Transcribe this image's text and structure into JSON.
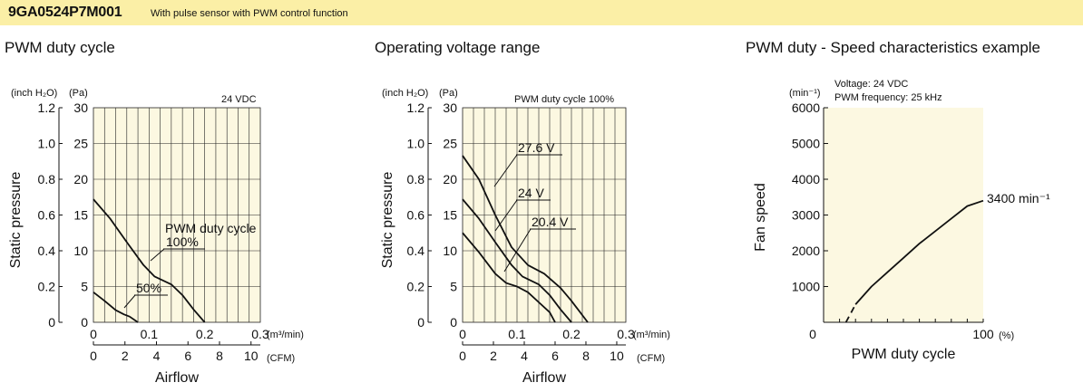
{
  "header": {
    "model": "9GA0524P7M001",
    "subtitle": "With pulse sensor with PWM control function",
    "colors": {
      "band": "#FBEFA6",
      "plot_bg": "#FCF8E1"
    }
  },
  "chart_data": [
    {
      "type": "line",
      "title": "PWM duty cycle",
      "note": "24 VDC",
      "xlabel": "Airflow",
      "ylabel": "Static pressure",
      "x_unit_primary": "(m³/min)",
      "x_unit_secondary": "(CFM)",
      "y_unit_left": "(inch H₂O)",
      "y_unit_right": "(Pa)",
      "xlim": [
        0,
        0.3
      ],
      "ylim": [
        0,
        30
      ],
      "x_ticks": [
        "0",
        "0.1",
        "0.2",
        "0.3"
      ],
      "x_ticks_secondary": [
        "0",
        "2",
        "4",
        "6",
        "8",
        "10"
      ],
      "y_ticks": [
        "0",
        "5",
        "10",
        "15",
        "20",
        "25",
        "30"
      ],
      "y_ticks_left": [
        "0",
        "0.2",
        "0.4",
        "0.6",
        "0.8",
        "1.0",
        "1.2"
      ],
      "grid": true,
      "series": [
        {
          "name": "100%",
          "x": [
            0,
            0.03,
            0.06,
            0.09,
            0.11,
            0.14,
            0.16,
            0.18,
            0.2
          ],
          "y": [
            17.2,
            14.5,
            11.2,
            8,
            6.4,
            5.3,
            3.8,
            1.8,
            0
          ]
        },
        {
          "name": "50%",
          "x": [
            0,
            0.02,
            0.04,
            0.055,
            0.065,
            0.08
          ],
          "y": [
            4.2,
            3,
            1.7,
            1.1,
            0.8,
            0
          ]
        }
      ],
      "annotations": [
        "PWM duty cycle",
        "100%",
        "50%"
      ]
    },
    {
      "type": "line",
      "title": "Operating voltage range",
      "note": "PWM duty cycle 100%",
      "xlabel": "Airflow",
      "ylabel": "Static pressure",
      "x_unit_primary": "(m³/min)",
      "x_unit_secondary": "(CFM)",
      "y_unit_left": "(inch H₂O)",
      "y_unit_right": "(Pa)",
      "xlim": [
        0,
        0.3
      ],
      "ylim": [
        0,
        30
      ],
      "x_ticks": [
        "0",
        "0.1",
        "0.2",
        "0.3"
      ],
      "x_ticks_secondary": [
        "0",
        "2",
        "4",
        "6",
        "8",
        "10"
      ],
      "y_ticks": [
        "0",
        "5",
        "10",
        "15",
        "20",
        "25",
        "30"
      ],
      "y_ticks_left": [
        "0",
        "0.2",
        "0.4",
        "0.6",
        "0.8",
        "1.0",
        "1.2"
      ],
      "grid": true,
      "series": [
        {
          "name": "27.6 V",
          "x": [
            0,
            0.03,
            0.06,
            0.09,
            0.12,
            0.15,
            0.18,
            0.2,
            0.23
          ],
          "y": [
            23.3,
            20,
            15,
            10.5,
            8,
            6.8,
            4.8,
            3,
            0
          ]
        },
        {
          "name": "24 V",
          "x": [
            0,
            0.03,
            0.06,
            0.09,
            0.11,
            0.14,
            0.16,
            0.18,
            0.2
          ],
          "y": [
            17.2,
            14.5,
            11.2,
            8,
            6.4,
            5.3,
            3.8,
            1.8,
            0
          ]
        },
        {
          "name": "20.4 V",
          "x": [
            0,
            0.03,
            0.06,
            0.08,
            0.1,
            0.12,
            0.14,
            0.16,
            0.17
          ],
          "y": [
            12.5,
            9.8,
            6.8,
            5.5,
            5,
            4.2,
            2.8,
            1.4,
            0
          ]
        }
      ],
      "annotations": [
        "27.6 V",
        "24 V",
        "20.4 V"
      ]
    },
    {
      "type": "line",
      "title": "PWM duty - Speed characteristics example",
      "notes": [
        "Voltage: 24 VDC",
        "PWM frequency: 25 kHz"
      ],
      "xlabel": "PWM duty cycle",
      "ylabel": "Fan speed",
      "x_unit": "(%)",
      "y_unit": "(min⁻¹)",
      "xlim": [
        0,
        100
      ],
      "ylim": [
        0,
        6000
      ],
      "x_ticks": [
        "0",
        "100"
      ],
      "y_ticks": [
        "1000",
        "2000",
        "3000",
        "4000",
        "5000",
        "6000"
      ],
      "grid": false,
      "series": [
        {
          "name": "",
          "x": [
            20,
            30,
            40,
            50,
            60,
            70,
            80,
            90,
            100
          ],
          "y": [
            500,
            1000,
            1400,
            1800,
            2200,
            2550,
            2900,
            3250,
            3400
          ]
        }
      ],
      "dashed_start": {
        "x": [
          14,
          20
        ],
        "y": [
          0,
          500
        ]
      },
      "annotations": [
        "3400 min⁻¹"
      ]
    }
  ]
}
